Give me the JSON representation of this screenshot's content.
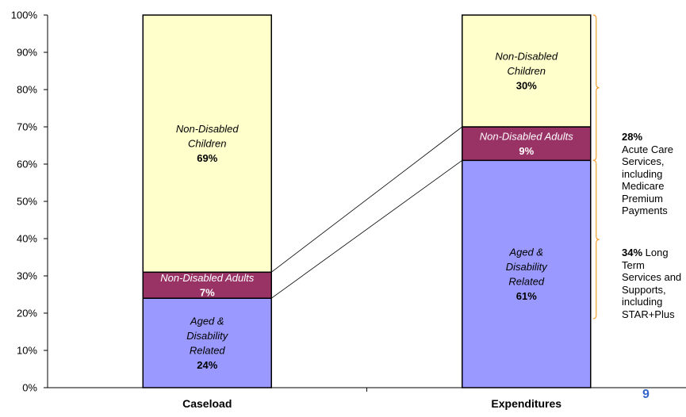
{
  "chart_data": {
    "type": "bar",
    "stacked": true,
    "percent": true,
    "categories": [
      "Caseload",
      "Expenditures"
    ],
    "series": [
      {
        "name": "Aged & Disability Related",
        "lines": [
          "Aged &",
          "Disability",
          "Related"
        ],
        "labels": [
          "24%",
          "61%"
        ],
        "values": [
          24,
          61
        ],
        "color": "#9999ff"
      },
      {
        "name": "Non-Disabled Adults",
        "lines": [
          "Non-Disabled Adults"
        ],
        "labels": [
          "7%",
          "9%"
        ],
        "values": [
          7,
          9
        ],
        "color": "#993366",
        "text_color": "#ffffff"
      },
      {
        "name": "Non-Disabled Children",
        "lines": [
          "Non-Disabled",
          "Children"
        ],
        "labels": [
          "69%",
          "30%"
        ],
        "values": [
          69,
          30
        ],
        "color": "#ffffcc"
      }
    ],
    "yticks": [
      "0%",
      "10%",
      "20%",
      "30%",
      "40%",
      "50%",
      "60%",
      "70%",
      "80%",
      "90%",
      "100%"
    ],
    "ylim": [
      0,
      100
    ],
    "annotations": [
      {
        "pct": "28%",
        "text": "Acute Care Services, including Medicare Premium Payments",
        "span": [
          61,
          100
        ]
      },
      {
        "pct": "34%",
        "text": "Long Term Services and Supports, including STAR+Plus",
        "span": [
          18.5,
          61
        ]
      }
    ]
  },
  "page_number": "9"
}
